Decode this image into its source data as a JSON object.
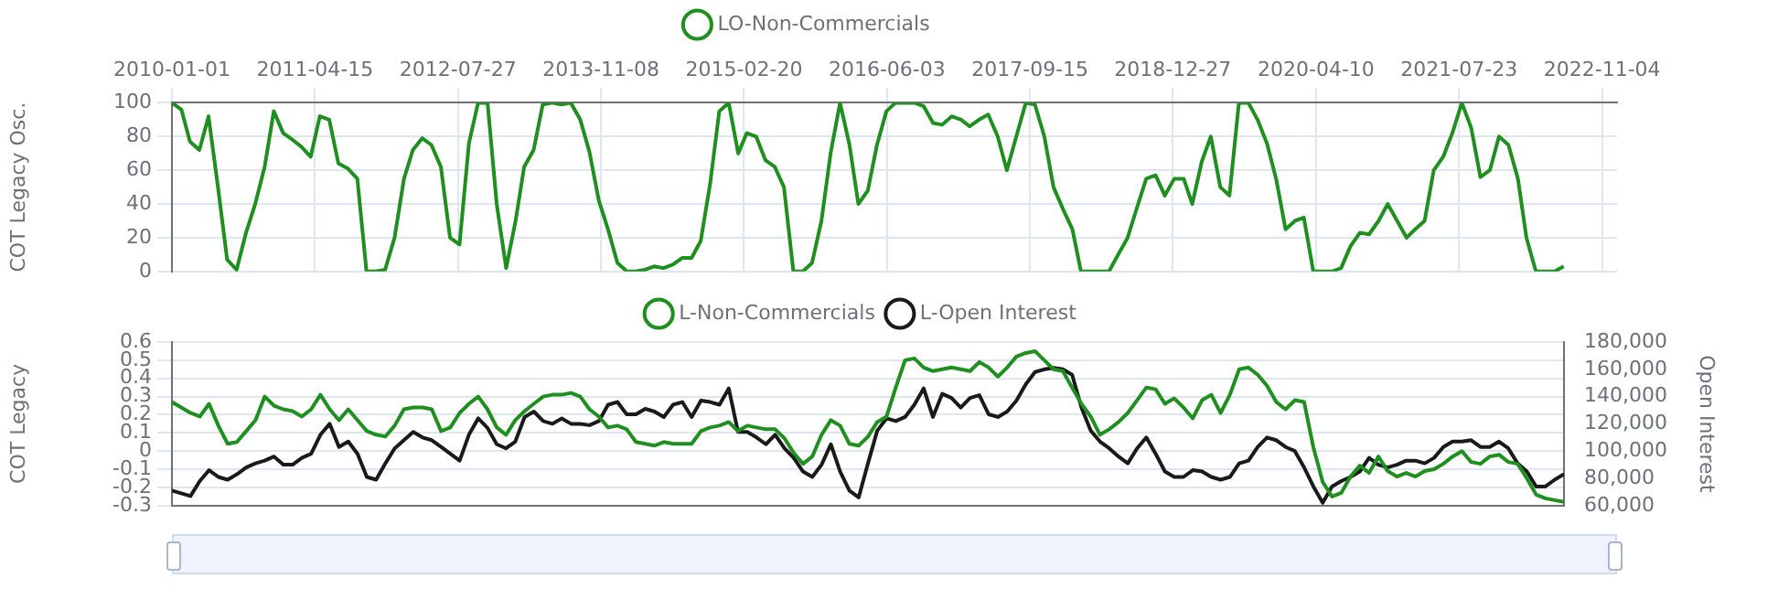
{
  "chart_data": [
    {
      "type": "line",
      "ylabel": "COT Legacy Osc.",
      "legend": "top",
      "grid": true,
      "xlim": [
        "2010-01-01",
        "2022-12-23"
      ],
      "xticks": [
        "2010-01-01",
        "2011-04-15",
        "2012-07-27",
        "2013-11-08",
        "2015-02-20",
        "2016-06-03",
        "2017-09-15",
        "2018-12-27",
        "2020-04-10",
        "2021-07-23",
        "2022-11-04"
      ],
      "ylim": [
        0,
        100
      ],
      "yticks": [
        0,
        20,
        40,
        60,
        80,
        100
      ],
      "x": [
        "2010-01",
        "2010-02",
        "2010-03",
        "2010-04",
        "2010-05",
        "2010-06",
        "2010-07",
        "2010-08",
        "2010-09",
        "2010-10",
        "2010-11",
        "2010-12",
        "2011-01",
        "2011-02",
        "2011-03",
        "2011-04",
        "2011-05",
        "2011-06",
        "2011-07",
        "2011-08",
        "2011-09",
        "2011-10",
        "2011-11",
        "2011-12",
        "2012-01",
        "2012-02",
        "2012-03",
        "2012-04",
        "2012-05",
        "2012-06",
        "2012-07",
        "2012-08",
        "2012-09",
        "2012-10",
        "2012-11",
        "2012-12",
        "2013-01",
        "2013-02",
        "2013-03",
        "2013-04",
        "2013-05",
        "2013-06",
        "2013-07",
        "2013-08",
        "2013-09",
        "2013-10",
        "2013-11",
        "2013-12",
        "2014-01",
        "2014-02",
        "2014-03",
        "2014-04",
        "2014-05",
        "2014-06",
        "2014-07",
        "2014-08",
        "2014-09",
        "2014-10",
        "2014-11",
        "2014-12",
        "2015-01",
        "2015-02",
        "2015-03",
        "2015-04",
        "2015-05",
        "2015-06",
        "2015-07",
        "2015-08",
        "2015-09",
        "2015-10",
        "2015-11",
        "2015-12",
        "2016-01",
        "2016-02",
        "2016-03",
        "2016-04",
        "2016-05",
        "2016-06",
        "2016-07",
        "2016-08",
        "2016-09",
        "2016-10",
        "2016-11",
        "2016-12",
        "2017-01",
        "2017-02",
        "2017-03",
        "2017-04",
        "2017-05",
        "2017-06",
        "2017-07",
        "2017-08",
        "2017-09",
        "2017-10",
        "2017-11",
        "2017-12",
        "2018-01",
        "2018-02",
        "2018-03",
        "2018-04",
        "2018-05",
        "2018-06",
        "2018-07",
        "2018-08",
        "2018-09",
        "2018-10",
        "2018-11",
        "2018-12",
        "2019-01",
        "2019-02",
        "2019-03",
        "2019-04",
        "2019-05",
        "2019-06",
        "2019-07",
        "2019-08",
        "2019-09",
        "2019-10",
        "2019-11",
        "2019-12",
        "2020-01",
        "2020-02",
        "2020-03",
        "2020-04",
        "2020-05",
        "2020-06",
        "2020-07",
        "2020-08",
        "2020-09",
        "2020-10",
        "2020-11",
        "2020-12",
        "2021-01",
        "2021-02",
        "2021-03",
        "2021-04",
        "2021-05",
        "2021-06",
        "2021-07",
        "2021-08",
        "2021-09",
        "2021-10",
        "2021-11",
        "2021-12",
        "2022-01",
        "2022-02",
        "2022-03",
        "2022-04",
        "2022-05",
        "2022-06",
        "2022-07"
      ],
      "series": [
        {
          "name": "LO-Non-Commercials",
          "color": "#1f8f1f",
          "values": [
            100,
            96,
            77,
            72,
            92,
            50,
            7,
            1,
            23,
            40,
            62,
            95,
            82,
            78,
            74,
            68,
            92,
            90,
            64,
            61,
            55,
            0,
            0,
            1,
            20,
            55,
            72,
            79,
            75,
            62,
            20,
            16,
            76,
            100,
            100,
            40,
            2,
            30,
            62,
            72,
            99,
            100,
            99,
            100,
            90,
            71,
            42,
            25,
            5,
            0,
            0,
            1,
            3,
            2,
            4,
            8,
            8,
            18,
            52,
            95,
            100,
            70,
            82,
            80,
            66,
            62,
            50,
            0,
            0,
            5,
            30,
            70,
            100,
            75,
            40,
            48,
            75,
            95,
            100,
            100,
            100,
            98,
            88,
            87,
            92,
            90,
            86,
            90,
            93,
            80,
            60,
            80,
            100,
            99,
            80,
            50,
            37,
            25,
            0,
            0,
            0,
            0,
            10,
            20,
            38,
            55,
            57,
            45,
            55,
            55,
            40,
            65,
            80,
            50,
            45,
            100,
            100,
            90,
            76,
            55,
            25,
            30,
            32,
            0,
            0,
            0,
            2,
            15,
            23,
            22,
            30,
            40,
            30,
            20,
            25,
            30,
            60,
            68,
            82,
            100,
            85,
            56,
            60,
            80,
            75,
            55,
            20,
            0,
            0,
            0,
            3
          ]
        }
      ]
    },
    {
      "type": "line",
      "ylabel": "COT Legacy",
      "y2label": "Open Interest",
      "legend": "top",
      "grid": "y",
      "tick_labels": "y",
      "ylim": [
        -0.3,
        0.6
      ],
      "yticks": [
        -0.3,
        -0.2,
        -0.1,
        0,
        0.1,
        0.2,
        0.3,
        0.4,
        0.5,
        0.6
      ],
      "y2lim": [
        60000,
        180000
      ],
      "y2ticks": [
        {
          "value": 60000,
          "label": "60,000"
        },
        {
          "value": 80000,
          "label": "80,000"
        },
        {
          "value": 100000,
          "label": "100,000"
        },
        {
          "value": 120000,
          "label": "120,000"
        },
        {
          "value": 140000,
          "label": "140,000"
        },
        {
          "value": 160000,
          "label": "160,000"
        },
        {
          "value": 180000,
          "label": "180,000"
        }
      ],
      "categories": [
        null,
        null,
        null,
        null,
        null,
        null,
        null,
        null,
        null,
        null,
        null,
        null,
        null,
        null,
        null,
        null,
        null,
        null,
        null,
        null,
        null,
        null,
        null,
        null,
        null,
        null,
        null,
        null,
        null,
        null,
        null,
        null,
        null,
        null,
        null,
        null,
        null,
        null,
        null,
        null,
        null,
        null,
        null,
        null,
        null,
        null,
        null,
        null,
        null,
        null,
        null,
        null,
        null,
        null,
        null,
        null,
        null,
        null,
        null,
        null,
        null,
        null,
        null,
        null,
        null,
        null,
        null,
        null,
        null,
        null,
        null,
        null,
        null,
        null,
        null,
        null,
        null,
        null,
        null,
        null,
        null,
        null,
        null,
        null,
        null,
        null,
        null,
        null,
        null,
        null,
        null,
        null,
        null,
        null,
        null,
        null,
        null,
        null,
        null,
        null,
        null,
        null,
        null,
        null,
        null,
        null,
        null,
        null,
        null,
        null,
        null,
        null,
        null,
        null,
        null,
        null,
        null,
        null,
        null,
        null,
        null,
        null,
        null,
        null,
        null,
        null,
        null,
        null,
        null,
        null,
        null,
        null,
        null,
        null,
        null,
        null,
        null,
        null,
        null,
        null,
        null,
        null,
        null,
        null,
        null,
        null,
        null,
        null,
        null,
        null,
        null
      ],
      "series": [
        {
          "name": "L-Non-Commercials",
          "color": "#1f8f1f",
          "values": [
            0.27,
            0.24,
            0.21,
            0.19,
            0.26,
            0.14,
            0.04,
            0.05,
            0.11,
            0.17,
            0.3,
            0.25,
            0.23,
            0.22,
            0.19,
            0.23,
            0.31,
            0.23,
            0.17,
            0.23,
            0.17,
            0.11,
            0.09,
            0.08,
            0.14,
            0.23,
            0.24,
            0.24,
            0.23,
            0.11,
            0.13,
            0.21,
            0.26,
            0.3,
            0.23,
            0.13,
            0.09,
            0.17,
            0.22,
            0.26,
            0.3,
            0.31,
            0.31,
            0.32,
            0.3,
            0.23,
            0.19,
            0.13,
            0.14,
            0.12,
            0.05,
            0.04,
            0.03,
            0.05,
            0.04,
            0.04,
            0.04,
            0.11,
            0.13,
            0.14,
            0.16,
            0.11,
            0.14,
            0.13,
            0.12,
            0.12,
            0.07,
            -0.01,
            -0.07,
            -0.03,
            0.09,
            0.17,
            0.14,
            0.04,
            0.03,
            0.08,
            0.16,
            0.19,
            0.35,
            0.5,
            0.51,
            0.46,
            0.44,
            0.45,
            0.46,
            0.45,
            0.44,
            0.49,
            0.46,
            0.41,
            0.46,
            0.52,
            0.54,
            0.55,
            0.5,
            0.45,
            0.44,
            0.35,
            0.26,
            0.19,
            0.09,
            0.12,
            0.16,
            0.21,
            0.28,
            0.35,
            0.34,
            0.26,
            0.29,
            0.24,
            0.18,
            0.28,
            0.31,
            0.21,
            0.31,
            0.45,
            0.46,
            0.42,
            0.36,
            0.27,
            0.23,
            0.28,
            0.27,
            0.02,
            -0.17,
            -0.25,
            -0.23,
            -0.14,
            -0.08,
            -0.12,
            -0.03,
            -0.11,
            -0.14,
            -0.12,
            -0.14,
            -0.11,
            -0.1,
            -0.07,
            -0.03,
            0.0,
            -0.06,
            -0.07,
            -0.03,
            -0.02,
            -0.06,
            -0.07,
            -0.15,
            -0.24,
            -0.26,
            -0.27,
            -0.28
          ]
        },
        {
          "name": "L-Open Interest",
          "color": "#1a1a1a",
          "axis": "y2",
          "values": [
            71000,
            69000,
            67000,
            78000,
            86000,
            81000,
            79000,
            83000,
            88000,
            91000,
            93000,
            96000,
            90000,
            90000,
            95000,
            98000,
            112000,
            120000,
            103000,
            107000,
            98000,
            81000,
            79000,
            91000,
            102000,
            108000,
            114000,
            110000,
            108000,
            103000,
            98000,
            93000,
            112000,
            124000,
            117000,
            105000,
            102000,
            107000,
            125000,
            129000,
            122000,
            120000,
            124000,
            120000,
            120000,
            119000,
            122000,
            134000,
            136000,
            127000,
            127000,
            131000,
            129000,
            125000,
            134000,
            136000,
            125000,
            137000,
            136000,
            134000,
            146000,
            114000,
            114000,
            110000,
            105000,
            112000,
            102000,
            95000,
            85000,
            81000,
            90000,
            105000,
            85000,
            71000,
            66000,
            91000,
            115000,
            124000,
            122000,
            125000,
            134000,
            146000,
            125000,
            142000,
            139000,
            132000,
            139000,
            141000,
            127000,
            125000,
            129000,
            137000,
            149000,
            158000,
            160000,
            161000,
            160000,
            156000,
            132000,
            115000,
            107000,
            102000,
            96000,
            91000,
            102000,
            110000,
            98000,
            85000,
            81000,
            81000,
            86000,
            85000,
            81000,
            79000,
            81000,
            91000,
            93000,
            103000,
            110000,
            108000,
            103000,
            100000,
            88000,
            74000,
            62000,
            74000,
            78000,
            81000,
            85000,
            95000,
            90000,
            88000,
            90000,
            93000,
            93000,
            91000,
            95000,
            103000,
            107000,
            107000,
            108000,
            103000,
            103000,
            107000,
            102000,
            91000,
            85000,
            74000,
            74000,
            79000,
            83000
          ]
        }
      ]
    }
  ]
}
